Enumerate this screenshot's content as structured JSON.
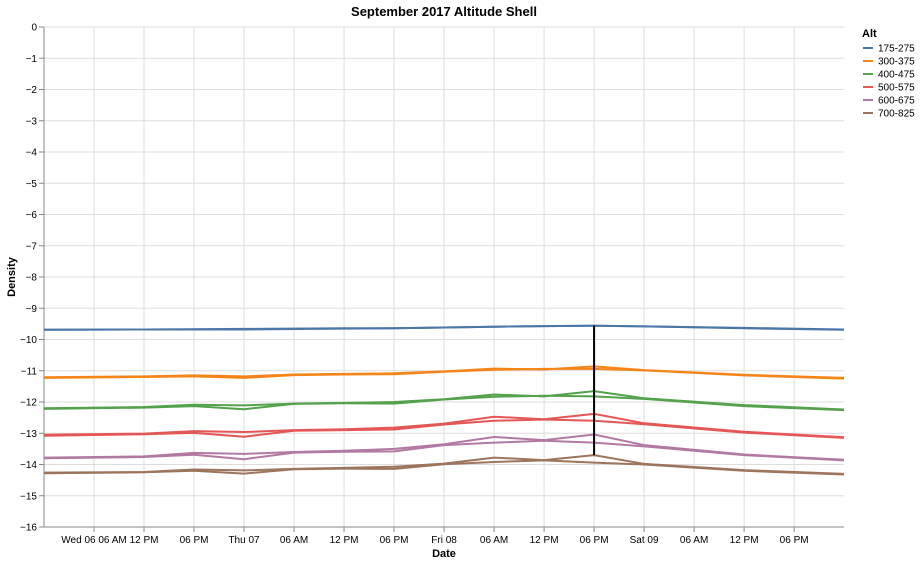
{
  "chart_data": {
    "type": "line",
    "title": "September 2017 Altitude Shell",
    "xlabel": "Date",
    "ylabel": "Density",
    "ylim": [
      -16,
      0
    ],
    "yticks": [
      0,
      -1,
      -2,
      -3,
      -4,
      -5,
      -6,
      -7,
      -8,
      -9,
      -10,
      -11,
      -12,
      -13,
      -14,
      -15,
      -16
    ],
    "xlim": [
      "2017-09-06T00:00",
      "2017-09-09T23:59"
    ],
    "xticks": [
      {
        "t": "2017-09-06T06:00",
        "label": "Wed 06 06 AM"
      },
      {
        "t": "2017-09-06T12:00",
        "label": "12 PM"
      },
      {
        "t": "2017-09-06T18:00",
        "label": "06 PM"
      },
      {
        "t": "2017-09-07T00:00",
        "label": "Thu 07"
      },
      {
        "t": "2017-09-07T06:00",
        "label": "06 AM"
      },
      {
        "t": "2017-09-07T12:00",
        "label": "12 PM"
      },
      {
        "t": "2017-09-07T18:00",
        "label": "06 PM"
      },
      {
        "t": "2017-09-08T00:00",
        "label": "Fri 08"
      },
      {
        "t": "2017-09-08T06:00",
        "label": "06 AM"
      },
      {
        "t": "2017-09-08T12:00",
        "label": "12 PM"
      },
      {
        "t": "2017-09-08T18:00",
        "label": "06 PM"
      },
      {
        "t": "2017-09-09T00:00",
        "label": "Sat 09"
      },
      {
        "t": "2017-09-09T06:00",
        "label": "06 AM"
      },
      {
        "t": "2017-09-09T12:00",
        "label": "12 PM"
      },
      {
        "t": "2017-09-09T18:00",
        "label": "06 PM"
      }
    ],
    "grid": true,
    "legend_title": "Alt",
    "legend_position": "top-right",
    "rule": {
      "x": "2017-09-08T18:00",
      "y1": -9.55,
      "y2": -13.7,
      "color": "#000000"
    },
    "series": [
      {
        "name": "175-275",
        "color": "#4c78a8",
        "lines": [
          [
            [
              "2017-09-06T00:00",
              -9.69
            ],
            [
              "2017-09-06T12:00",
              -9.68
            ],
            [
              "2017-09-07T00:00",
              -9.66
            ],
            [
              "2017-09-07T12:00",
              -9.64
            ],
            [
              "2017-09-07T18:00",
              -9.64
            ],
            [
              "2017-09-08T06:00",
              -9.59
            ],
            [
              "2017-09-08T12:00",
              -9.57
            ],
            [
              "2017-09-08T18:00",
              -9.56
            ],
            [
              "2017-09-09T00:00",
              -9.58
            ],
            [
              "2017-09-09T12:00",
              -9.63
            ],
            [
              "2017-09-09T23:59",
              -9.68
            ]
          ],
          [
            [
              "2017-09-06T00:00",
              -9.69
            ],
            [
              "2017-09-06T12:00",
              -9.68
            ],
            [
              "2017-09-07T00:00",
              -9.68
            ],
            [
              "2017-09-07T12:00",
              -9.65
            ],
            [
              "2017-09-07T18:00",
              -9.64
            ],
            [
              "2017-09-08T06:00",
              -9.59
            ],
            [
              "2017-09-08T12:00",
              -9.57
            ],
            [
              "2017-09-08T18:00",
              -9.56
            ],
            [
              "2017-09-09T00:00",
              -9.58
            ],
            [
              "2017-09-09T12:00",
              -9.64
            ],
            [
              "2017-09-09T23:59",
              -9.69
            ]
          ]
        ]
      },
      {
        "name": "300-375",
        "color": "#f58518",
        "lines": [
          [
            [
              "2017-09-06T00:00",
              -11.21
            ],
            [
              "2017-09-06T12:00",
              -11.18
            ],
            [
              "2017-09-06T18:00",
              -11.15
            ],
            [
              "2017-09-07T00:00",
              -11.18
            ],
            [
              "2017-09-07T06:00",
              -11.12
            ],
            [
              "2017-09-07T12:00",
              -11.1
            ],
            [
              "2017-09-07T18:00",
              -11.08
            ],
            [
              "2017-09-08T00:00",
              -11.02
            ],
            [
              "2017-09-08T06:00",
              -10.93
            ],
            [
              "2017-09-08T12:00",
              -10.96
            ],
            [
              "2017-09-08T18:00",
              -10.86
            ],
            [
              "2017-09-09T00:00",
              -10.98
            ],
            [
              "2017-09-09T12:00",
              -11.13
            ],
            [
              "2017-09-09T23:59",
              -11.23
            ]
          ],
          [
            [
              "2017-09-06T00:00",
              -11.23
            ],
            [
              "2017-09-06T12:00",
              -11.2
            ],
            [
              "2017-09-06T18:00",
              -11.18
            ],
            [
              "2017-09-07T00:00",
              -11.23
            ],
            [
              "2017-09-07T06:00",
              -11.14
            ],
            [
              "2017-09-07T12:00",
              -11.12
            ],
            [
              "2017-09-07T18:00",
              -11.11
            ],
            [
              "2017-09-08T00:00",
              -11.03
            ],
            [
              "2017-09-08T06:00",
              -10.97
            ],
            [
              "2017-09-08T12:00",
              -10.94
            ],
            [
              "2017-09-08T18:00",
              -10.94
            ],
            [
              "2017-09-09T00:00",
              -10.99
            ],
            [
              "2017-09-09T12:00",
              -11.15
            ],
            [
              "2017-09-09T23:59",
              -11.25
            ]
          ]
        ]
      },
      {
        "name": "400-475",
        "color": "#54a24b",
        "lines": [
          [
            [
              "2017-09-06T00:00",
              -12.2
            ],
            [
              "2017-09-06T12:00",
              -12.16
            ],
            [
              "2017-09-06T18:00",
              -12.09
            ],
            [
              "2017-09-07T00:00",
              -12.11
            ],
            [
              "2017-09-07T06:00",
              -12.05
            ],
            [
              "2017-09-07T12:00",
              -12.03
            ],
            [
              "2017-09-07T18:00",
              -12.0
            ],
            [
              "2017-09-08T00:00",
              -11.91
            ],
            [
              "2017-09-08T06:00",
              -11.76
            ],
            [
              "2017-09-08T12:00",
              -11.82
            ],
            [
              "2017-09-08T18:00",
              -11.65
            ],
            [
              "2017-09-09T00:00",
              -11.88
            ],
            [
              "2017-09-09T12:00",
              -12.1
            ],
            [
              "2017-09-09T23:59",
              -12.24
            ]
          ],
          [
            [
              "2017-09-06T00:00",
              -12.22
            ],
            [
              "2017-09-06T12:00",
              -12.18
            ],
            [
              "2017-09-06T18:00",
              -12.13
            ],
            [
              "2017-09-07T00:00",
              -12.23
            ],
            [
              "2017-09-07T06:00",
              -12.06
            ],
            [
              "2017-09-07T12:00",
              -12.04
            ],
            [
              "2017-09-07T18:00",
              -12.05
            ],
            [
              "2017-09-08T00:00",
              -11.92
            ],
            [
              "2017-09-08T06:00",
              -11.83
            ],
            [
              "2017-09-08T12:00",
              -11.8
            ],
            [
              "2017-09-08T18:00",
              -11.82
            ],
            [
              "2017-09-09T00:00",
              -11.9
            ],
            [
              "2017-09-09T12:00",
              -12.13
            ],
            [
              "2017-09-09T23:59",
              -12.26
            ]
          ]
        ]
      },
      {
        "name": "500-575",
        "color": "#e45756",
        "lines": [
          [
            [
              "2017-09-06T00:00",
              -13.05
            ],
            [
              "2017-09-06T12:00",
              -13.01
            ],
            [
              "2017-09-06T18:00",
              -12.93
            ],
            [
              "2017-09-07T00:00",
              -12.96
            ],
            [
              "2017-09-07T06:00",
              -12.9
            ],
            [
              "2017-09-07T12:00",
              -12.87
            ],
            [
              "2017-09-07T18:00",
              -12.82
            ],
            [
              "2017-09-08T00:00",
              -12.69
            ],
            [
              "2017-09-08T06:00",
              -12.47
            ],
            [
              "2017-09-08T12:00",
              -12.55
            ],
            [
              "2017-09-08T18:00",
              -12.38
            ],
            [
              "2017-09-09T00:00",
              -12.68
            ],
            [
              "2017-09-09T12:00",
              -12.95
            ],
            [
              "2017-09-09T23:59",
              -13.13
            ]
          ],
          [
            [
              "2017-09-06T00:00",
              -13.08
            ],
            [
              "2017-09-06T12:00",
              -13.03
            ],
            [
              "2017-09-06T18:00",
              -12.99
            ],
            [
              "2017-09-07T00:00",
              -13.11
            ],
            [
              "2017-09-07T06:00",
              -12.92
            ],
            [
              "2017-09-07T12:00",
              -12.9
            ],
            [
              "2017-09-07T18:00",
              -12.88
            ],
            [
              "2017-09-08T00:00",
              -12.72
            ],
            [
              "2017-09-08T06:00",
              -12.6
            ],
            [
              "2017-09-08T12:00",
              -12.56
            ],
            [
              "2017-09-08T18:00",
              -12.6
            ],
            [
              "2017-09-09T00:00",
              -12.71
            ],
            [
              "2017-09-09T12:00",
              -12.98
            ],
            [
              "2017-09-09T23:59",
              -13.15
            ]
          ]
        ]
      },
      {
        "name": "600-675",
        "color": "#b279a2",
        "lines": [
          [
            [
              "2017-09-06T00:00",
              -13.78
            ],
            [
              "2017-09-06T12:00",
              -13.74
            ],
            [
              "2017-09-06T18:00",
              -13.63
            ],
            [
              "2017-09-07T00:00",
              -13.66
            ],
            [
              "2017-09-07T06:00",
              -13.6
            ],
            [
              "2017-09-07T12:00",
              -13.56
            ],
            [
              "2017-09-07T18:00",
              -13.5
            ],
            [
              "2017-09-08T00:00",
              -13.35
            ],
            [
              "2017-09-08T06:00",
              -13.12
            ],
            [
              "2017-09-08T12:00",
              -13.22
            ],
            [
              "2017-09-08T18:00",
              -13.04
            ],
            [
              "2017-09-09T00:00",
              -13.38
            ],
            [
              "2017-09-09T12:00",
              -13.68
            ],
            [
              "2017-09-09T23:59",
              -13.85
            ]
          ],
          [
            [
              "2017-09-06T00:00",
              -13.8
            ],
            [
              "2017-09-06T12:00",
              -13.76
            ],
            [
              "2017-09-06T18:00",
              -13.69
            ],
            [
              "2017-09-07T00:00",
              -13.83
            ],
            [
              "2017-09-07T06:00",
              -13.62
            ],
            [
              "2017-09-07T12:00",
              -13.59
            ],
            [
              "2017-09-07T18:00",
              -13.58
            ],
            [
              "2017-09-08T00:00",
              -13.38
            ],
            [
              "2017-09-08T06:00",
              -13.3
            ],
            [
              "2017-09-08T12:00",
              -13.24
            ],
            [
              "2017-09-08T18:00",
              -13.3
            ],
            [
              "2017-09-09T00:00",
              -13.42
            ],
            [
              "2017-09-09T12:00",
              -13.7
            ],
            [
              "2017-09-09T23:59",
              -13.87
            ]
          ]
        ]
      },
      {
        "name": "700-825",
        "color": "#9d755d",
        "lines": [
          [
            [
              "2017-09-06T00:00",
              -14.26
            ],
            [
              "2017-09-06T12:00",
              -14.24
            ],
            [
              "2017-09-06T18:00",
              -14.16
            ],
            [
              "2017-09-07T00:00",
              -14.19
            ],
            [
              "2017-09-07T06:00",
              -14.14
            ],
            [
              "2017-09-07T12:00",
              -14.11
            ],
            [
              "2017-09-07T18:00",
              -14.07
            ],
            [
              "2017-09-08T00:00",
              -13.97
            ],
            [
              "2017-09-08T06:00",
              -13.78
            ],
            [
              "2017-09-08T12:00",
              -13.86
            ],
            [
              "2017-09-08T18:00",
              -13.7
            ],
            [
              "2017-09-09T00:00",
              -13.98
            ],
            [
              "2017-09-09T12:00",
              -14.18
            ],
            [
              "2017-09-09T23:59",
              -14.3
            ]
          ],
          [
            [
              "2017-09-06T00:00",
              -14.28
            ],
            [
              "2017-09-06T12:00",
              -14.25
            ],
            [
              "2017-09-06T18:00",
              -14.2
            ],
            [
              "2017-09-07T00:00",
              -14.29
            ],
            [
              "2017-09-07T06:00",
              -14.15
            ],
            [
              "2017-09-07T12:00",
              -14.13
            ],
            [
              "2017-09-07T18:00",
              -14.14
            ],
            [
              "2017-09-08T00:00",
              -13.99
            ],
            [
              "2017-09-08T06:00",
              -13.92
            ],
            [
              "2017-09-08T12:00",
              -13.87
            ],
            [
              "2017-09-08T18:00",
              -13.94
            ],
            [
              "2017-09-09T00:00",
              -14.0
            ],
            [
              "2017-09-09T12:00",
              -14.2
            ],
            [
              "2017-09-09T23:59",
              -14.32
            ]
          ]
        ]
      }
    ]
  }
}
